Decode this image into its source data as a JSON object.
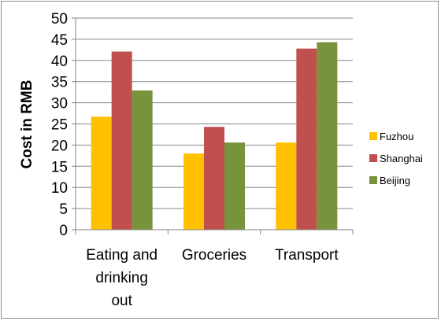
{
  "chart_data": {
    "type": "bar",
    "title": "",
    "xlabel": "",
    "ylabel": "Cost in RMB",
    "ylim": [
      0,
      50
    ],
    "yticks": [
      0,
      5,
      10,
      15,
      20,
      25,
      30,
      35,
      40,
      45,
      50
    ],
    "grid": true,
    "legend_position": "right",
    "categories": [
      [
        "Eating and",
        "drinking",
        "out"
      ],
      [
        "Groceries"
      ],
      [
        "Transport"
      ]
    ],
    "series": [
      {
        "name": "Fuzhou",
        "color": "#ffc000",
        "values": [
          26.7,
          18.0,
          20.6
        ]
      },
      {
        "name": "Shanghai",
        "color": "#c0504d",
        "values": [
          42.1,
          24.3,
          42.8
        ]
      },
      {
        "name": "Beijing",
        "color": "#77933c",
        "values": [
          32.9,
          20.6,
          44.3
        ]
      }
    ]
  }
}
